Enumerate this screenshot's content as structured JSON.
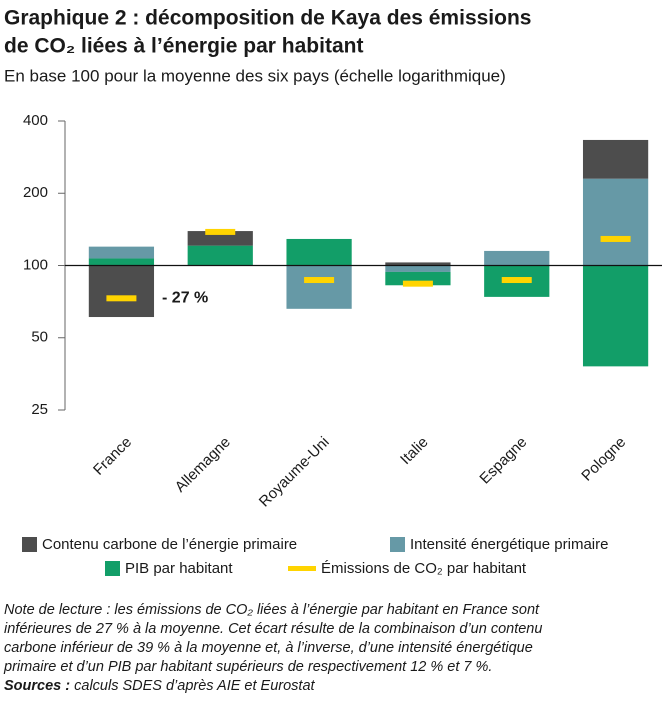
{
  "chart_data": {
    "type": "bar",
    "title": [
      "Graphique 2 : décomposition de Kaya des émissions",
      "de CO₂ liées à l’énergie par habitant"
    ],
    "subtitle": "En base 100 pour la moyenne des six pays (échelle logarithmique)",
    "categories": [
      "France",
      "Allemagne",
      "Royaume-Uni",
      "Italie",
      "Espagne",
      "Pologne"
    ],
    "base": 100,
    "log_scale": true,
    "ylim": [
      25,
      400
    ],
    "yticks": [
      25,
      50,
      100,
      200,
      400
    ],
    "series": [
      {
        "name": "Contenu carbone de l’énergie primaire",
        "color": "#4d4d4d",
        "values": [
          61,
          115,
          100,
          103,
          100,
          145
        ]
      },
      {
        "name": "Intensité énergétique primaire",
        "color": "#6699a6",
        "values": [
          112,
          100,
          66,
          94,
          115,
          230
        ]
      },
      {
        "name": "PIB par habitant",
        "color": "#129e68",
        "values": [
          107,
          121,
          129,
          88,
          74,
          38
        ]
      }
    ],
    "markers": {
      "name": "Émissions de CO₂ par habitant",
      "color": "#ffd400",
      "values": [
        73,
        138,
        87,
        84,
        87,
        129
      ]
    },
    "annotation": {
      "text": "- 27 %",
      "category": 0
    },
    "note": [
      "Note de lecture : les émissions de CO₂ liées à l’énergie par habitant en France sont",
      "inférieures de 27 % à la moyenne. Cet écart résulte de la combinaison d’un contenu",
      "carbone inférieur de 39 % à la moyenne et, à l’inverse, d’une intensité énergétique",
      "primaire et d’un PIB par habitant supérieurs de respectivement 12 % et 7 %."
    ],
    "sources": {
      "label": "Sources :",
      "text": "calculs SDES d’après AIE et Eurostat"
    }
  }
}
